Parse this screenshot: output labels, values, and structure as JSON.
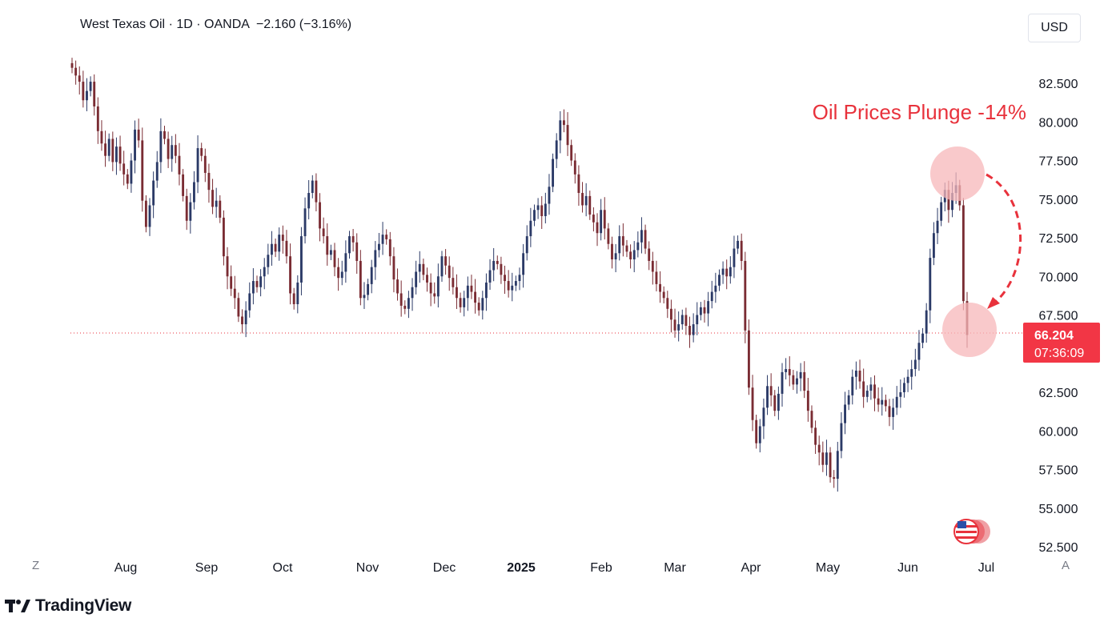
{
  "header": {
    "symbol": "West Texas Oil",
    "interval": "1D",
    "source": "OANDA",
    "change": "−2.160 (−3.16%)",
    "separator": "·"
  },
  "currency_button": "USD",
  "corner_left": "Z",
  "corner_right": "A",
  "brand": "TradingView",
  "annotation": "Oil Prices Plunge -14%",
  "price_badge": {
    "price": "66.204",
    "countdown": "07:36:09"
  },
  "colors": {
    "up": "#2b3a67",
    "down": "#7a2c33",
    "accent": "#e8323c",
    "badge": "#f23645",
    "grid_text": "#131722"
  },
  "chart_data": {
    "type": "candlestick",
    "title": "West Texas Oil · 1D · OANDA",
    "x_ticks": [
      "Aug",
      "Sep",
      "Oct",
      "Nov",
      "Dec",
      "2025",
      "Feb",
      "Mar",
      "Apr",
      "May",
      "Jun",
      "Jul"
    ],
    "y_ticks": [
      "82.500",
      "80.000",
      "77.500",
      "75.000",
      "72.500",
      "70.000",
      "67.500",
      "62.500",
      "60.000",
      "57.500",
      "55.000",
      "52.500"
    ],
    "ylim": [
      52.5,
      84.5
    ],
    "current_price": 66.204,
    "series_close": [
      83.5,
      83.0,
      82.6,
      81.4,
      82.0,
      82.6,
      81.0,
      79.4,
      78.6,
      77.8,
      78.9,
      77.4,
      78.4,
      77.3,
      76.6,
      76.0,
      77.5,
      79.5,
      78.8,
      74.9,
      73.2,
      74.6,
      76.2,
      77.4,
      79.4,
      78.9,
      77.6,
      78.5,
      77.8,
      76.6,
      75.2,
      73.6,
      74.8,
      76.1,
      78.3,
      77.8,
      76.7,
      75.6,
      74.5,
      74.9,
      73.8,
      71.3,
      70.0,
      69.2,
      68.6,
      67.4,
      66.9,
      67.8,
      68.9,
      69.7,
      69.3,
      70.0,
      70.6,
      71.4,
      72.1,
      71.6,
      72.7,
      72.3,
      71.3,
      68.9,
      68.2,
      69.6,
      72.6,
      74.4,
      75.4,
      76.2,
      74.8,
      73.1,
      72.6,
      71.4,
      71.7,
      70.6,
      69.9,
      70.3,
      71.5,
      72.6,
      72.2,
      71.0,
      68.6,
      68.8,
      69.5,
      70.6,
      71.7,
      72.1,
      72.7,
      72.4,
      71.3,
      69.8,
      68.9,
      68.1,
      67.9,
      68.6,
      69.3,
      70.3,
      70.8,
      70.1,
      69.6,
      68.9,
      68.7,
      70.0,
      71.3,
      70.7,
      69.9,
      69.3,
      68.6,
      68.0,
      68.6,
      69.4,
      69.0,
      68.3,
      67.8,
      68.6,
      69.6,
      70.4,
      71.0,
      70.8,
      70.1,
      69.7,
      69.1,
      69.4,
      69.7,
      70.1,
      71.5,
      72.6,
      73.6,
      74.3,
      74.6,
      73.9,
      74.7,
      75.8,
      77.6,
      78.8,
      80.1,
      79.8,
      78.5,
      77.5,
      76.6,
      75.4,
      74.6,
      75.2,
      74.0,
      73.5,
      72.8,
      74.3,
      73.1,
      72.1,
      71.1,
      71.5,
      72.6,
      72.0,
      71.6,
      71.1,
      71.7,
      72.2,
      73.0,
      71.8,
      71.0,
      70.3,
      69.5,
      69.0,
      68.6,
      67.9,
      67.2,
      66.5,
      66.9,
      67.5,
      66.8,
      66.2,
      66.9,
      67.5,
      68.0,
      67.6,
      68.4,
      69.0,
      69.4,
      70.1,
      70.5,
      70.0,
      70.6,
      71.8,
      72.3,
      71.0,
      66.5,
      62.8,
      60.7,
      59.2,
      60.3,
      61.5,
      62.9,
      62.3,
      61.3,
      62.4,
      63.8,
      64.0,
      63.6,
      63.0,
      63.4,
      63.8,
      62.6,
      61.3,
      60.2,
      59.1,
      58.6,
      57.8,
      58.6,
      57.0,
      56.9,
      58.7,
      60.5,
      61.7,
      62.3,
      63.5,
      63.9,
      63.2,
      62.2,
      62.6,
      63.0,
      62.1,
      61.7,
      62.0,
      61.6,
      60.9,
      61.5,
      62.2,
      62.5,
      63.1,
      63.5,
      64.0,
      64.6,
      65.7,
      66.3,
      67.8,
      71.2,
      72.8,
      73.6,
      74.8,
      75.6,
      74.3,
      75.4,
      75.9,
      74.6,
      68.4,
      66.204
    ]
  }
}
